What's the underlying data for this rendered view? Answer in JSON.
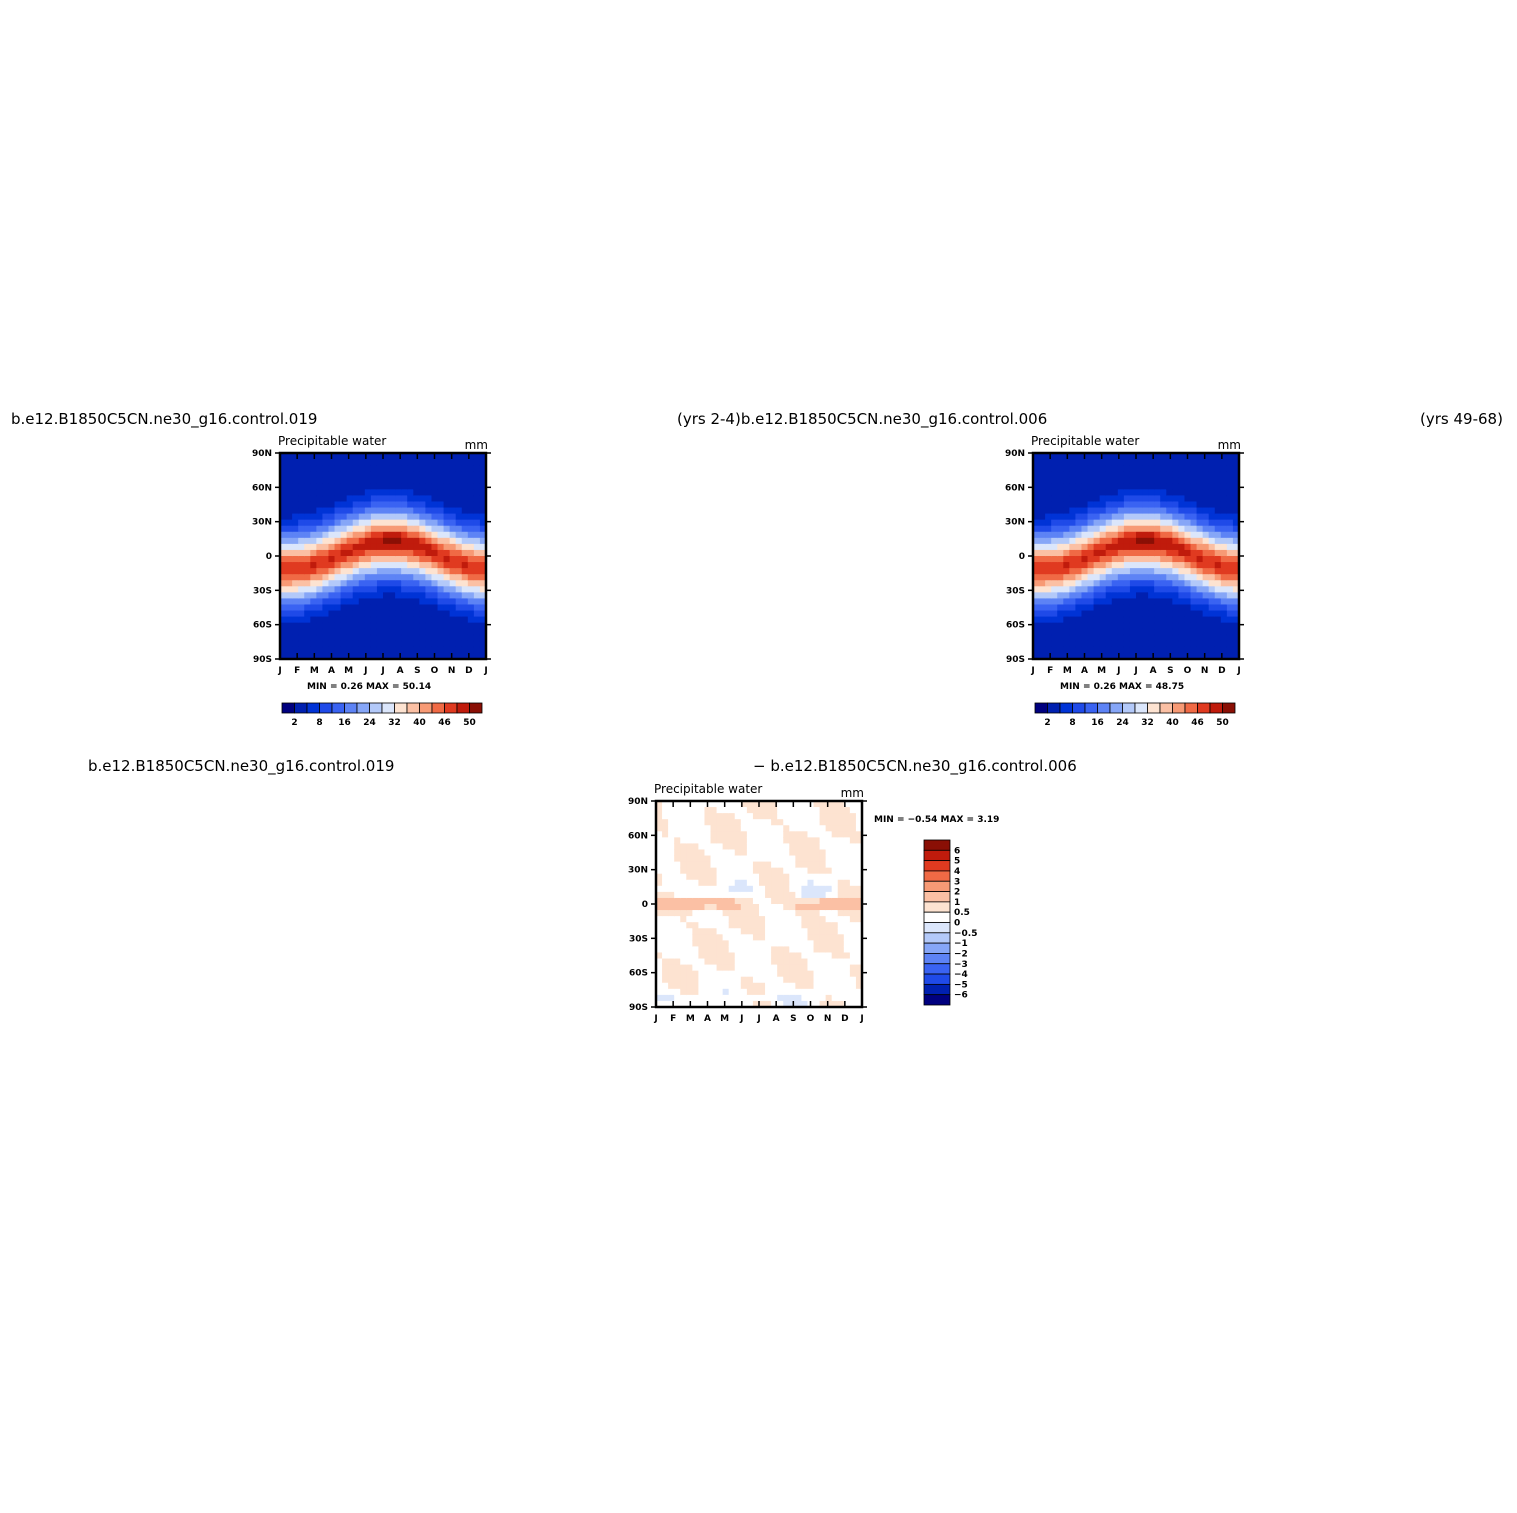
{
  "titles": {
    "top_left": "b.e12.B1850C5CN.ne30_g16.control.019",
    "top_mid": "(yrs 2-4)b.e12.B1850C5CN.ne30_g16.control.006",
    "top_right": "(yrs 49-68)",
    "bottom_left": "b.e12.B1850C5CN.ne30_g16.control.019",
    "bottom_mid": "− b.e12.B1850C5CN.ne30_g16.control.006"
  },
  "chart_data": [
    {
      "type": "heatmap",
      "id": "panel1",
      "title": "Precipitable water",
      "units": "mm",
      "xlabels": [
        "J",
        "F",
        "M",
        "A",
        "M",
        "J",
        "J",
        "A",
        "S",
        "O",
        "N",
        "D",
        "J"
      ],
      "ylabels": [
        "90N",
        "60N",
        "30N",
        "0",
        "30S",
        "60S",
        "90S"
      ],
      "ylim": [
        -90,
        90
      ],
      "stat_label": "MIN =    0.26  MAX =   50.14",
      "min": 0.26,
      "max": 50.14,
      "colorbar_ticks": [
        "2",
        "8",
        "16",
        "24",
        "32",
        "40",
        "46",
        "50"
      ],
      "colorbar_colors": [
        "#00007f",
        "#0020b0",
        "#0033d6",
        "#1f4ae8",
        "#3a63f2",
        "#5d83f5",
        "#86a6f7",
        "#b3c9f9",
        "#dbe6fb",
        "#fde3d1",
        "#fbc0a4",
        "#f79a75",
        "#f06a45",
        "#e03a20",
        "#c01b0c",
        "#8a0f05"
      ]
    },
    {
      "type": "heatmap",
      "id": "panel2",
      "title": "Precipitable water",
      "units": "mm",
      "xlabels": [
        "J",
        "F",
        "M",
        "A",
        "M",
        "J",
        "J",
        "A",
        "S",
        "O",
        "N",
        "D",
        "J"
      ],
      "ylabels": [
        "90N",
        "60N",
        "30N",
        "0",
        "30S",
        "60S",
        "90S"
      ],
      "ylim": [
        -90,
        90
      ],
      "stat_label": "MIN =    0.26  MAX =   48.75",
      "min": 0.26,
      "max": 48.75,
      "colorbar_ticks": [
        "2",
        "8",
        "16",
        "24",
        "32",
        "40",
        "46",
        "50"
      ],
      "colorbar_colors": [
        "#00007f",
        "#0020b0",
        "#0033d6",
        "#1f4ae8",
        "#3a63f2",
        "#5d83f5",
        "#86a6f7",
        "#b3c9f9",
        "#dbe6fb",
        "#fde3d1",
        "#fbc0a4",
        "#f79a75",
        "#f06a45",
        "#e03a20",
        "#c01b0c",
        "#8a0f05"
      ]
    },
    {
      "type": "heatmap",
      "id": "panel3",
      "title": "Precipitable water",
      "units": "mm",
      "xlabels": [
        "J",
        "F",
        "M",
        "A",
        "M",
        "J",
        "J",
        "A",
        "S",
        "O",
        "N",
        "D",
        "J"
      ],
      "ylabels": [
        "90N",
        "60N",
        "30N",
        "0",
        "30S",
        "60S",
        "90S"
      ],
      "ylim": [
        -90,
        90
      ],
      "stat_label": "MIN =   −0.54  MAX =    3.19",
      "min": -0.54,
      "max": 3.19,
      "colorbar_ticks": [
        "6",
        "5",
        "4",
        "3",
        "2",
        "1",
        "0.5",
        "0",
        "−0.5",
        "−1",
        "−2",
        "−3",
        "−4",
        "−5",
        "−6"
      ],
      "colorbar_colors": [
        "#8a0f05",
        "#c01b0c",
        "#e03a20",
        "#f06a45",
        "#f79a75",
        "#fbc0a4",
        "#fde3d1",
        "#ffffff",
        "#dbe6fb",
        "#b3c9f9",
        "#86a6f7",
        "#5d83f5",
        "#3a63f2",
        "#1f4ae8",
        "#0020b0",
        "#00007f"
      ]
    }
  ]
}
